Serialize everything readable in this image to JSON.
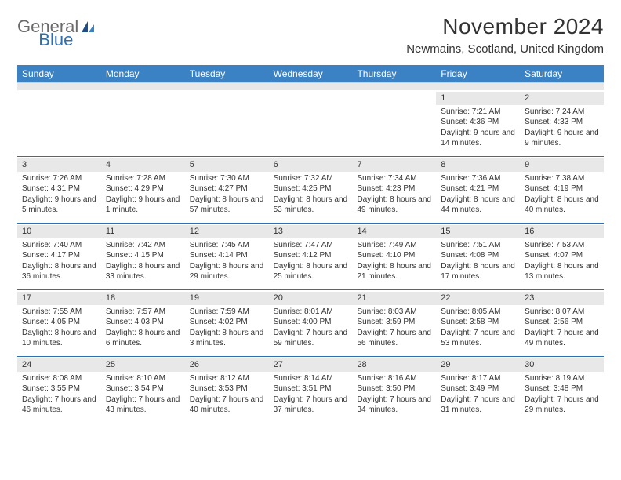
{
  "brand": {
    "prefix": "General",
    "suffix": "Blue"
  },
  "title": "November 2024",
  "location": "Newmains, Scotland, United Kingdom",
  "colors": {
    "header_bg": "#3b82c4",
    "rule": "#2f6fae",
    "shade": "#e8e8e8",
    "text": "#333333",
    "brand_gray": "#6a6a6a",
    "brand_blue": "#2f6fae"
  },
  "days_of_week": [
    "Sunday",
    "Monday",
    "Tuesday",
    "Wednesday",
    "Thursday",
    "Friday",
    "Saturday"
  ],
  "weeks": [
    [
      {
        "n": "",
        "sunrise": "",
        "sunset": "",
        "daylight": ""
      },
      {
        "n": "",
        "sunrise": "",
        "sunset": "",
        "daylight": ""
      },
      {
        "n": "",
        "sunrise": "",
        "sunset": "",
        "daylight": ""
      },
      {
        "n": "",
        "sunrise": "",
        "sunset": "",
        "daylight": ""
      },
      {
        "n": "",
        "sunrise": "",
        "sunset": "",
        "daylight": ""
      },
      {
        "n": "1",
        "sunrise": "Sunrise: 7:21 AM",
        "sunset": "Sunset: 4:36 PM",
        "daylight": "Daylight: 9 hours and 14 minutes."
      },
      {
        "n": "2",
        "sunrise": "Sunrise: 7:24 AM",
        "sunset": "Sunset: 4:33 PM",
        "daylight": "Daylight: 9 hours and 9 minutes."
      }
    ],
    [
      {
        "n": "3",
        "sunrise": "Sunrise: 7:26 AM",
        "sunset": "Sunset: 4:31 PM",
        "daylight": "Daylight: 9 hours and 5 minutes."
      },
      {
        "n": "4",
        "sunrise": "Sunrise: 7:28 AM",
        "sunset": "Sunset: 4:29 PM",
        "daylight": "Daylight: 9 hours and 1 minute."
      },
      {
        "n": "5",
        "sunrise": "Sunrise: 7:30 AM",
        "sunset": "Sunset: 4:27 PM",
        "daylight": "Daylight: 8 hours and 57 minutes."
      },
      {
        "n": "6",
        "sunrise": "Sunrise: 7:32 AM",
        "sunset": "Sunset: 4:25 PM",
        "daylight": "Daylight: 8 hours and 53 minutes."
      },
      {
        "n": "7",
        "sunrise": "Sunrise: 7:34 AM",
        "sunset": "Sunset: 4:23 PM",
        "daylight": "Daylight: 8 hours and 49 minutes."
      },
      {
        "n": "8",
        "sunrise": "Sunrise: 7:36 AM",
        "sunset": "Sunset: 4:21 PM",
        "daylight": "Daylight: 8 hours and 44 minutes."
      },
      {
        "n": "9",
        "sunrise": "Sunrise: 7:38 AM",
        "sunset": "Sunset: 4:19 PM",
        "daylight": "Daylight: 8 hours and 40 minutes."
      }
    ],
    [
      {
        "n": "10",
        "sunrise": "Sunrise: 7:40 AM",
        "sunset": "Sunset: 4:17 PM",
        "daylight": "Daylight: 8 hours and 36 minutes."
      },
      {
        "n": "11",
        "sunrise": "Sunrise: 7:42 AM",
        "sunset": "Sunset: 4:15 PM",
        "daylight": "Daylight: 8 hours and 33 minutes."
      },
      {
        "n": "12",
        "sunrise": "Sunrise: 7:45 AM",
        "sunset": "Sunset: 4:14 PM",
        "daylight": "Daylight: 8 hours and 29 minutes."
      },
      {
        "n": "13",
        "sunrise": "Sunrise: 7:47 AM",
        "sunset": "Sunset: 4:12 PM",
        "daylight": "Daylight: 8 hours and 25 minutes."
      },
      {
        "n": "14",
        "sunrise": "Sunrise: 7:49 AM",
        "sunset": "Sunset: 4:10 PM",
        "daylight": "Daylight: 8 hours and 21 minutes."
      },
      {
        "n": "15",
        "sunrise": "Sunrise: 7:51 AM",
        "sunset": "Sunset: 4:08 PM",
        "daylight": "Daylight: 8 hours and 17 minutes."
      },
      {
        "n": "16",
        "sunrise": "Sunrise: 7:53 AM",
        "sunset": "Sunset: 4:07 PM",
        "daylight": "Daylight: 8 hours and 13 minutes."
      }
    ],
    [
      {
        "n": "17",
        "sunrise": "Sunrise: 7:55 AM",
        "sunset": "Sunset: 4:05 PM",
        "daylight": "Daylight: 8 hours and 10 minutes."
      },
      {
        "n": "18",
        "sunrise": "Sunrise: 7:57 AM",
        "sunset": "Sunset: 4:03 PM",
        "daylight": "Daylight: 8 hours and 6 minutes."
      },
      {
        "n": "19",
        "sunrise": "Sunrise: 7:59 AM",
        "sunset": "Sunset: 4:02 PM",
        "daylight": "Daylight: 8 hours and 3 minutes."
      },
      {
        "n": "20",
        "sunrise": "Sunrise: 8:01 AM",
        "sunset": "Sunset: 4:00 PM",
        "daylight": "Daylight: 7 hours and 59 minutes."
      },
      {
        "n": "21",
        "sunrise": "Sunrise: 8:03 AM",
        "sunset": "Sunset: 3:59 PM",
        "daylight": "Daylight: 7 hours and 56 minutes."
      },
      {
        "n": "22",
        "sunrise": "Sunrise: 8:05 AM",
        "sunset": "Sunset: 3:58 PM",
        "daylight": "Daylight: 7 hours and 53 minutes."
      },
      {
        "n": "23",
        "sunrise": "Sunrise: 8:07 AM",
        "sunset": "Sunset: 3:56 PM",
        "daylight": "Daylight: 7 hours and 49 minutes."
      }
    ],
    [
      {
        "n": "24",
        "sunrise": "Sunrise: 8:08 AM",
        "sunset": "Sunset: 3:55 PM",
        "daylight": "Daylight: 7 hours and 46 minutes."
      },
      {
        "n": "25",
        "sunrise": "Sunrise: 8:10 AM",
        "sunset": "Sunset: 3:54 PM",
        "daylight": "Daylight: 7 hours and 43 minutes."
      },
      {
        "n": "26",
        "sunrise": "Sunrise: 8:12 AM",
        "sunset": "Sunset: 3:53 PM",
        "daylight": "Daylight: 7 hours and 40 minutes."
      },
      {
        "n": "27",
        "sunrise": "Sunrise: 8:14 AM",
        "sunset": "Sunset: 3:51 PM",
        "daylight": "Daylight: 7 hours and 37 minutes."
      },
      {
        "n": "28",
        "sunrise": "Sunrise: 8:16 AM",
        "sunset": "Sunset: 3:50 PM",
        "daylight": "Daylight: 7 hours and 34 minutes."
      },
      {
        "n": "29",
        "sunrise": "Sunrise: 8:17 AM",
        "sunset": "Sunset: 3:49 PM",
        "daylight": "Daylight: 7 hours and 31 minutes."
      },
      {
        "n": "30",
        "sunrise": "Sunrise: 8:19 AM",
        "sunset": "Sunset: 3:48 PM",
        "daylight": "Daylight: 7 hours and 29 minutes."
      }
    ]
  ]
}
